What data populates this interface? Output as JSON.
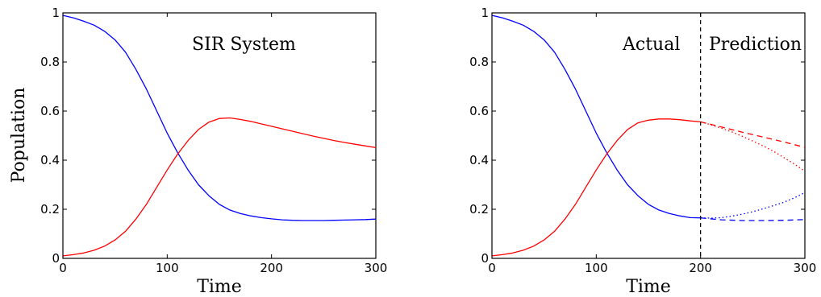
{
  "chart_data": [
    {
      "type": "line",
      "title": "",
      "annotation": "SIR System",
      "xlabel": "Time",
      "ylabel": "Population",
      "xlim": [
        0,
        300
      ],
      "ylim": [
        0,
        1
      ],
      "xticks": [
        "0",
        "100",
        "200",
        "300"
      ],
      "yticks": [
        "0",
        "0.2",
        "0.4",
        "0.6",
        "0.8",
        "1"
      ],
      "grid": false,
      "series": [
        {
          "color": "#0000ff",
          "style": "solid",
          "x": [
            0,
            10,
            20,
            30,
            40,
            50,
            60,
            70,
            80,
            90,
            100,
            110,
            120,
            130,
            140,
            150,
            160,
            170,
            180,
            190,
            200,
            210,
            220,
            230,
            240,
            250,
            260,
            270,
            280,
            290,
            300
          ],
          "y": [
            0.99,
            0.98,
            0.966,
            0.95,
            0.925,
            0.89,
            0.84,
            0.77,
            0.69,
            0.6,
            0.51,
            0.43,
            0.36,
            0.3,
            0.255,
            0.22,
            0.197,
            0.183,
            0.173,
            0.166,
            0.161,
            0.157,
            0.155,
            0.154,
            0.154,
            0.154,
            0.155,
            0.156,
            0.157,
            0.158,
            0.16
          ]
        },
        {
          "color": "#ff0000",
          "style": "solid",
          "x": [
            0,
            10,
            20,
            30,
            40,
            50,
            60,
            70,
            80,
            90,
            100,
            110,
            120,
            130,
            140,
            150,
            160,
            170,
            180,
            190,
            200,
            210,
            220,
            230,
            240,
            250,
            260,
            270,
            280,
            290,
            300
          ],
          "y": [
            0.01,
            0.015,
            0.022,
            0.033,
            0.05,
            0.075,
            0.11,
            0.16,
            0.22,
            0.29,
            0.36,
            0.425,
            0.48,
            0.525,
            0.555,
            0.57,
            0.572,
            0.566,
            0.558,
            0.548,
            0.538,
            0.528,
            0.518,
            0.508,
            0.498,
            0.489,
            0.48,
            0.472,
            0.465,
            0.458,
            0.451
          ]
        }
      ]
    },
    {
      "type": "line",
      "title": "",
      "annotations": [
        "Actual",
        "Prediction"
      ],
      "xlabel": "Time",
      "ylabel": "",
      "xlim": [
        0,
        300
      ],
      "ylim": [
        0,
        1
      ],
      "xticks": [
        "0",
        "100",
        "200",
        "300"
      ],
      "yticks": [
        "0",
        "0.2",
        "0.4",
        "0.6",
        "0.8",
        "1"
      ],
      "grid": false,
      "divider_x": 200,
      "series": [
        {
          "color": "#0000ff",
          "style": "solid",
          "x": [
            0,
            10,
            20,
            30,
            40,
            50,
            60,
            70,
            80,
            90,
            100,
            110,
            120,
            130,
            140,
            150,
            160,
            170,
            180,
            190,
            200
          ],
          "y": [
            0.99,
            0.98,
            0.966,
            0.95,
            0.925,
            0.89,
            0.84,
            0.77,
            0.69,
            0.6,
            0.51,
            0.43,
            0.36,
            0.3,
            0.255,
            0.22,
            0.197,
            0.183,
            0.173,
            0.166,
            0.165
          ]
        },
        {
          "color": "#ff0000",
          "style": "solid",
          "x": [
            0,
            10,
            20,
            30,
            40,
            50,
            60,
            70,
            80,
            90,
            100,
            110,
            120,
            130,
            140,
            150,
            160,
            170,
            180,
            190,
            200
          ],
          "y": [
            0.01,
            0.015,
            0.022,
            0.033,
            0.05,
            0.075,
            0.11,
            0.16,
            0.22,
            0.29,
            0.36,
            0.425,
            0.48,
            0.525,
            0.552,
            0.563,
            0.568,
            0.568,
            0.565,
            0.56,
            0.556
          ]
        },
        {
          "color": "#0000ff",
          "style": "dashed",
          "x": [
            200,
            220,
            240,
            260,
            280,
            300
          ],
          "y": [
            0.165,
            0.157,
            0.154,
            0.154,
            0.155,
            0.158
          ]
        },
        {
          "color": "#ff0000",
          "style": "dashed",
          "x": [
            200,
            220,
            240,
            260,
            280,
            300
          ],
          "y": [
            0.556,
            0.535,
            0.514,
            0.494,
            0.474,
            0.452
          ]
        },
        {
          "color": "#0000ff",
          "style": "dotted",
          "x": [
            200,
            210,
            220,
            230,
            240,
            250,
            260,
            270,
            280,
            290,
            300
          ],
          "y": [
            0.165,
            0.164,
            0.166,
            0.172,
            0.18,
            0.19,
            0.202,
            0.215,
            0.229,
            0.247,
            0.268
          ]
        },
        {
          "color": "#ff0000",
          "style": "dotted",
          "x": [
            200,
            210,
            220,
            230,
            240,
            250,
            260,
            270,
            280,
            290,
            300
          ],
          "y": [
            0.556,
            0.544,
            0.53,
            0.515,
            0.497,
            0.478,
            0.458,
            0.436,
            0.41,
            0.384,
            0.355
          ]
        }
      ]
    }
  ]
}
